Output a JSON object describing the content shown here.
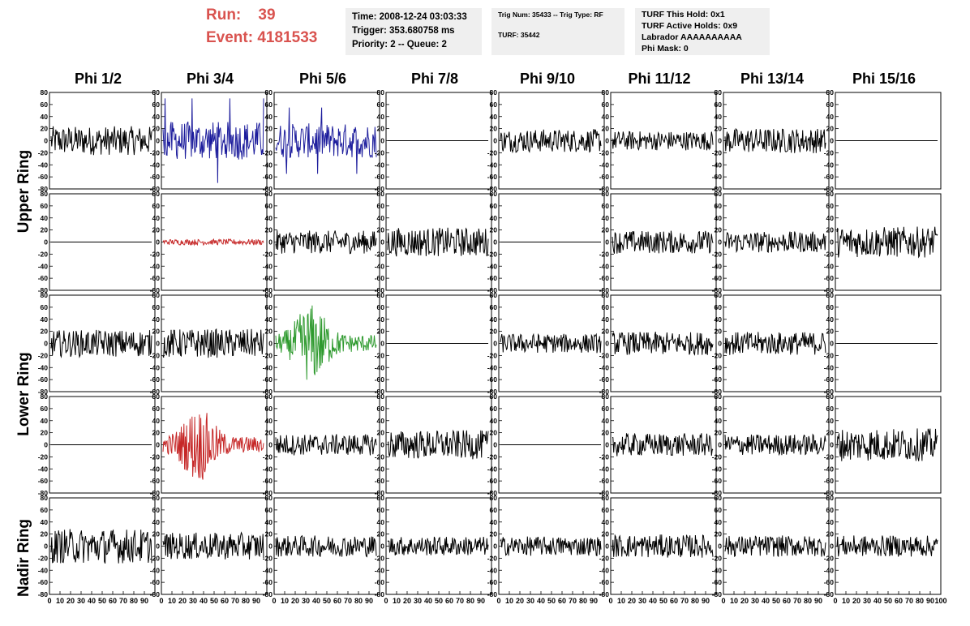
{
  "header": {
    "run_label": "Run:",
    "run_value": "39",
    "event_label": "Event:",
    "event_value": "4181533",
    "time": "Time: 2008-12-24 03:03:33",
    "trigger": "Trigger: 353.680758 ms",
    "priority": "Priority: 2 -- Queue: 2",
    "trig_num": "Trig Num: 35433 -- Trig Type: RF",
    "turf": "TURF: 35442",
    "turf_hold": "TURF This Hold: 0x1",
    "turf_active": "TURF Active Holds: 0x9",
    "labrador": "Labrador AAAAAAAAAA",
    "phi_mask": "Phi Mask: 0"
  },
  "columns": [
    "Phi 1/2",
    "Phi 3/4",
    "Phi 5/6",
    "Phi 7/8",
    "Phi 9/10",
    "Phi 11/12",
    "Phi 13/14",
    "Phi 15/16"
  ],
  "rows": [
    "Upper Ring",
    "Lower Ring",
    "Nadir Ring"
  ],
  "colors": {
    "blue": "#1c1c9c",
    "red": "#c62828",
    "green": "#2e9a2e",
    "black": "#000000",
    "header_red": "#d9534f",
    "info_bg": "#efefef"
  },
  "chart_data": {
    "type": "line",
    "description_units": "waveform panels, 5 trace rows x 8 phi columns",
    "ylim": [
      -80,
      80
    ],
    "yticks": [
      -80,
      -60,
      -40,
      -20,
      0,
      20,
      40,
      60,
      80
    ],
    "xlim": [
      0,
      100
    ],
    "xticks": [
      0,
      10,
      20,
      30,
      40,
      50,
      60,
      70,
      80,
      90,
      100
    ],
    "panels": [
      [
        {
          "amp": 15,
          "color": "black"
        },
        {
          "amp": 20,
          "color": "blue",
          "spike": 70
        },
        {
          "amp": 18,
          "color": "blue",
          "spike": 55
        },
        {
          "amp": 0,
          "color": "black"
        },
        {
          "amp": 12,
          "color": "black"
        },
        {
          "amp": 10,
          "color": "black"
        },
        {
          "amp": 13,
          "color": "black"
        },
        {
          "amp": 0,
          "color": "black"
        }
      ],
      [
        {
          "amp": 0,
          "color": "black"
        },
        {
          "amp": 3,
          "color": "red"
        },
        {
          "amp": 12,
          "color": "black"
        },
        {
          "amp": 15,
          "color": "black"
        },
        {
          "amp": 0,
          "color": "black"
        },
        {
          "amp": 12,
          "color": "black"
        },
        {
          "amp": 11,
          "color": "black"
        },
        {
          "amp": 16,
          "color": "black"
        }
      ],
      [
        {
          "amp": 14,
          "color": "black"
        },
        {
          "amp": 15,
          "color": "black"
        },
        {
          "amp": 18,
          "color": "green",
          "burst": true
        },
        {
          "amp": 0,
          "color": "black"
        },
        {
          "amp": 10,
          "color": "black"
        },
        {
          "amp": 12,
          "color": "black"
        },
        {
          "amp": 12,
          "color": "black"
        },
        {
          "amp": 0,
          "color": "black"
        }
      ],
      [
        {
          "amp": 0,
          "color": "black"
        },
        {
          "amp": 17,
          "color": "red",
          "burst": true
        },
        {
          "amp": 11,
          "color": "black"
        },
        {
          "amp": 15,
          "color": "black"
        },
        {
          "amp": 0,
          "color": "black"
        },
        {
          "amp": 12,
          "color": "black"
        },
        {
          "amp": 11,
          "color": "black"
        },
        {
          "amp": 17,
          "color": "black"
        }
      ],
      [
        {
          "amp": 18,
          "color": "black"
        },
        {
          "amp": 14,
          "color": "black"
        },
        {
          "amp": 11,
          "color": "black"
        },
        {
          "amp": 10,
          "color": "black"
        },
        {
          "amp": 10,
          "color": "black"
        },
        {
          "amp": 12,
          "color": "black"
        },
        {
          "amp": 11,
          "color": "black"
        },
        {
          "amp": 11,
          "color": "black"
        }
      ]
    ]
  }
}
